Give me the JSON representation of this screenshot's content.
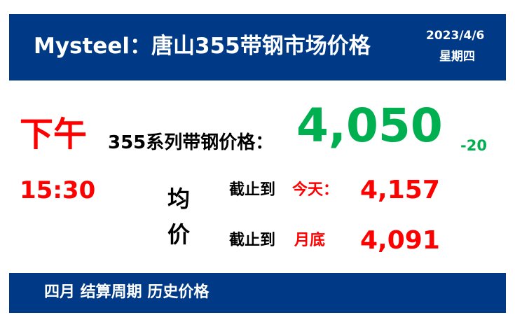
{
  "header": {
    "title": "Mysteel：唐山355带钢市场价格",
    "date": "2023/4/6",
    "weekday": "星期四"
  },
  "session": {
    "period": "下午",
    "time": "15:30"
  },
  "price": {
    "label": "355系列带钢价格：",
    "value": "4,050",
    "change": "-20"
  },
  "average": {
    "label_1": "均",
    "label_2": "价",
    "rows": [
      {
        "prefix": "截止到",
        "period": "今天：",
        "value": "4,157"
      },
      {
        "prefix": "截止到",
        "period": "月底",
        "value": "4,091"
      }
    ]
  },
  "footer": {
    "text": "四月 结算周期 历史价格"
  },
  "colors": {
    "banner": "#003A86",
    "up_red": "#FF0000",
    "down_green": "#00B050"
  }
}
